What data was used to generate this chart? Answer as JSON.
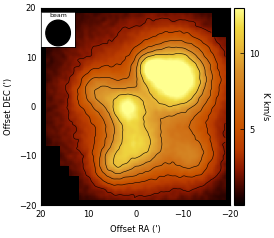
{
  "xlabel": "Offset RA (')",
  "ylabel": "Offset DEC (')",
  "colorbar_label": "K km/s",
  "xlim": [
    20,
    -20
  ],
  "ylim": [
    -20,
    20
  ],
  "xticks": [
    20,
    10,
    0,
    -10,
    -20
  ],
  "yticks": [
    -20,
    -10,
    0,
    10,
    20
  ],
  "vmin": 0,
  "vmax": 13,
  "contour_levels": [
    2.5,
    4.5,
    6.5,
    8.5,
    10.5
  ],
  "colorbar_ticks": [
    5,
    10
  ],
  "figsize": [
    2.74,
    2.38
  ],
  "dpi": 100,
  "cmap_nodes": [
    0.0,
    0.04,
    0.1,
    0.18,
    0.28,
    0.4,
    0.55,
    0.68,
    0.8,
    0.9,
    1.0
  ],
  "cmap_colors": [
    "#000000",
    "#1a0000",
    "#4a0800",
    "#8a1800",
    "#b83a00",
    "#ca5500",
    "#d07318",
    "#d8902a",
    "#e8b838",
    "#f0d840",
    "#ffff90"
  ]
}
